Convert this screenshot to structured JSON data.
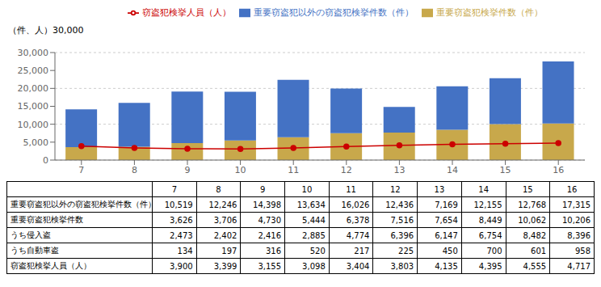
{
  "chart_data": {
    "type": "bar",
    "stacked": true,
    "grid": true,
    "legend": "upper left",
    "ylabel": "（件、人）30,000",
    "categories": [
      "7",
      "8",
      "9",
      "10",
      "11",
      "12",
      "13",
      "14",
      "15",
      "16"
    ],
    "series": [
      {
        "name": "重要窃盗犯検挙件数（件）",
        "type": "bar",
        "color": "#c8a84b",
        "values": [
          3626,
          3706,
          4730,
          5444,
          6378,
          7516,
          7654,
          8449,
          10062,
          10206
        ]
      },
      {
        "name": "重要窃盗犯以外の窃盗犯検挙件数（件）",
        "type": "bar",
        "color": "#4472c4",
        "values": [
          10519,
          12246,
          14398,
          13634,
          16026,
          12436,
          7169,
          12155,
          12768,
          17315
        ]
      },
      {
        "name": "窃盗犯検挙人員（人）",
        "type": "line",
        "color": "#cc0000",
        "marker": "circle",
        "values": [
          3900,
          3399,
          3155,
          3098,
          3404,
          3803,
          4135,
          4395,
          4555,
          4717
        ]
      }
    ],
    "ylim": [
      0,
      30000
    ],
    "yticks": [
      0,
      {
        "value": 5000,
        "label": "5,000"
      },
      {
        "value": 10000,
        "label": "10,000"
      },
      {
        "value": 15000,
        "label": "15,000"
      },
      {
        "value": 20000,
        "label": "20,000"
      },
      {
        "value": 25000,
        "label": "25,000"
      },
      {
        "value": 30000,
        "label": "30,000"
      }
    ],
    "table": {
      "columns": [
        "7",
        "8",
        "9",
        "10",
        "11",
        "12",
        "13",
        "14",
        "15",
        "16"
      ],
      "rows": [
        {
          "label": "重要窃盗犯以外の窃盗犯検挙件数（件）",
          "values": [
            10519,
            12246,
            14398,
            13634,
            16026,
            12436,
            7169,
            12155,
            12768,
            17315
          ],
          "value_labels": [
            "10,519",
            "12,246",
            "14,398",
            "13,634",
            "16,026",
            "12,436",
            "7,169",
            "12,155",
            "12,768",
            "17,315"
          ]
        },
        {
          "label": "重要窃盗犯検挙件数",
          "values": [
            3626,
            3706,
            4730,
            5444,
            6378,
            7516,
            7654,
            8449,
            10062,
            10206
          ],
          "value_labels": [
            "3,626",
            "3,706",
            "4,730",
            "5,444",
            "6,378",
            "7,516",
            "7,654",
            "8,449",
            "10,062",
            "10,206"
          ]
        },
        {
          "label": "うち侵入盗",
          "values": [
            2473,
            2402,
            2416,
            2885,
            4774,
            6396,
            6147,
            6754,
            8482,
            8396
          ],
          "value_labels": [
            "2,473",
            "2,402",
            "2,416",
            "2,885",
            "4,774",
            "6,396",
            "6,147",
            "6,754",
            "8,482",
            "8,396"
          ]
        },
        {
          "label": "うち自動車盗",
          "values": [
            134,
            197,
            316,
            520,
            217,
            225,
            450,
            700,
            601,
            958
          ],
          "value_labels": [
            "134",
            "197",
            "316",
            "520",
            "217",
            "225",
            "450",
            "700",
            "601",
            "958"
          ]
        },
        {
          "label": "窃盗犯検挙人員（人）",
          "values": [
            3900,
            3399,
            3155,
            3098,
            3404,
            3803,
            4135,
            4395,
            4555,
            4717
          ],
          "value_labels": [
            "3,900",
            "3,399",
            "3,155",
            "3,098",
            "3,404",
            "3,803",
            "4,135",
            "4,395",
            "4,555",
            "4,717"
          ]
        }
      ]
    }
  }
}
